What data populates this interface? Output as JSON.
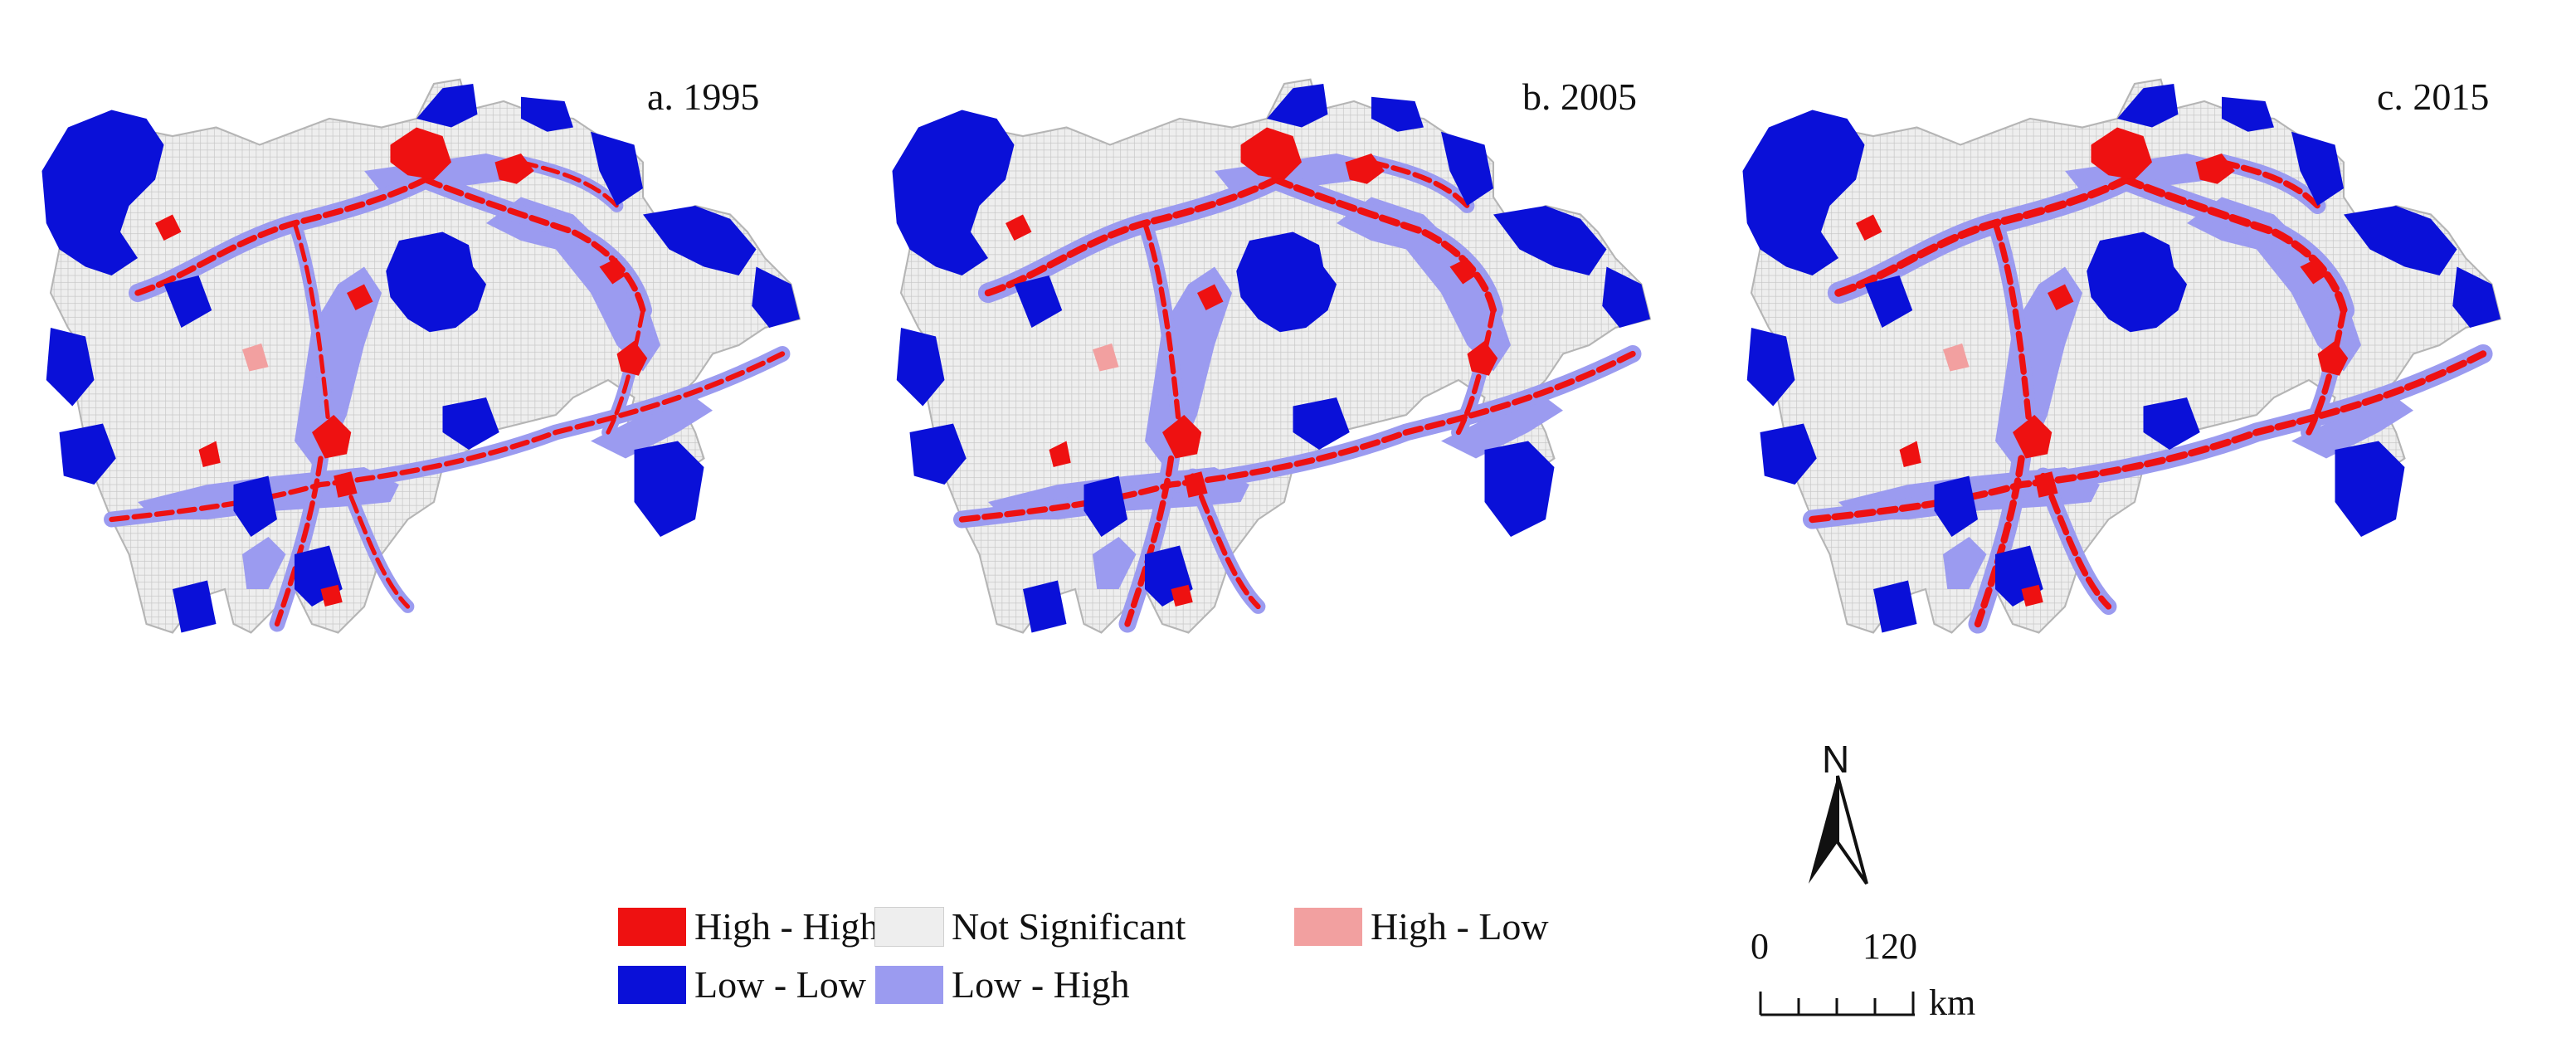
{
  "panels": [
    {
      "label": "a. 1995"
    },
    {
      "label": "b. 2005"
    },
    {
      "label": "c. 2015"
    }
  ],
  "legend": {
    "items": [
      {
        "label": "High - High",
        "color": "#ee1111"
      },
      {
        "label": "Not Significant",
        "color": "#eeeeee"
      },
      {
        "label": "High - Low",
        "color": "#f2a0a0"
      },
      {
        "label": "Low - Low",
        "color": "#0a10d8"
      },
      {
        "label": "Low - High",
        "color": "#9b9bf0"
      }
    ]
  },
  "north_arrow": {
    "letter": "N",
    "icon": "north-arrow-icon"
  },
  "scale_bar": {
    "start": "0",
    "end": "120",
    "unit": "km"
  },
  "colors": {
    "high_high": "#ee1111",
    "low_low": "#0a10d8",
    "low_high": "#9b9bf0",
    "high_low": "#f2a0a0",
    "not_significant": "#eeeeee",
    "grid": "#c9c9c9"
  }
}
